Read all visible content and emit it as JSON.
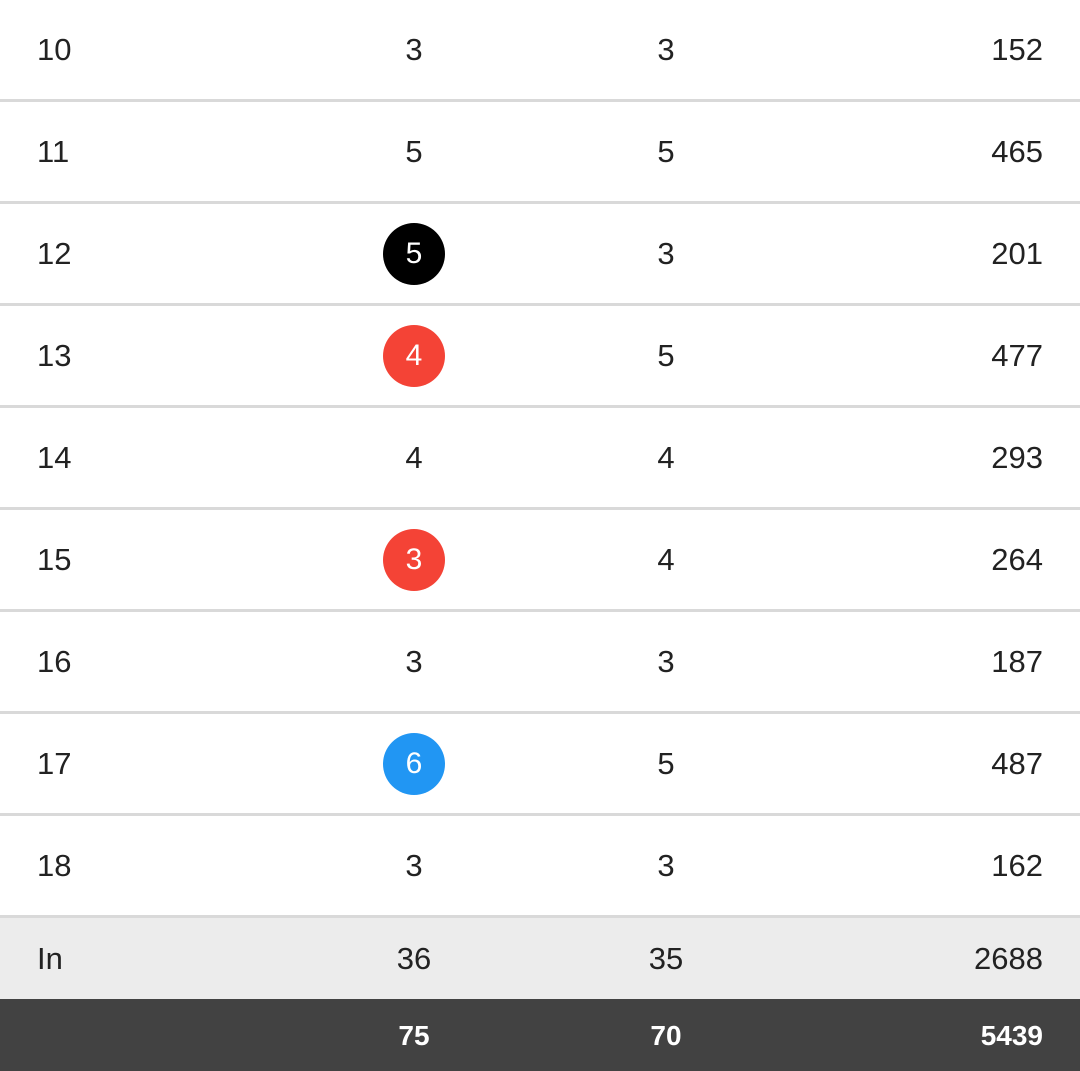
{
  "scorecard": {
    "rows": [
      {
        "hole": "10",
        "score": "3",
        "par": "3",
        "yards": "152",
        "marker": null
      },
      {
        "hole": "11",
        "score": "5",
        "par": "5",
        "yards": "465",
        "marker": null
      },
      {
        "hole": "12",
        "score": "5",
        "par": "3",
        "yards": "201",
        "marker": "#000000"
      },
      {
        "hole": "13",
        "score": "4",
        "par": "5",
        "yards": "477",
        "marker": "#f44336"
      },
      {
        "hole": "14",
        "score": "4",
        "par": "4",
        "yards": "293",
        "marker": null
      },
      {
        "hole": "15",
        "score": "3",
        "par": "4",
        "yards": "264",
        "marker": "#f44336"
      },
      {
        "hole": "16",
        "score": "3",
        "par": "3",
        "yards": "187",
        "marker": null
      },
      {
        "hole": "17",
        "score": "6",
        "par": "5",
        "yards": "487",
        "marker": "#2196f3"
      },
      {
        "hole": "18",
        "score": "3",
        "par": "3",
        "yards": "162",
        "marker": null
      }
    ],
    "in_row": {
      "label": "In",
      "score": "36",
      "par": "35",
      "yards": "2688"
    },
    "total_row": {
      "label": "",
      "score": "75",
      "par": "70",
      "yards": "5439"
    }
  }
}
